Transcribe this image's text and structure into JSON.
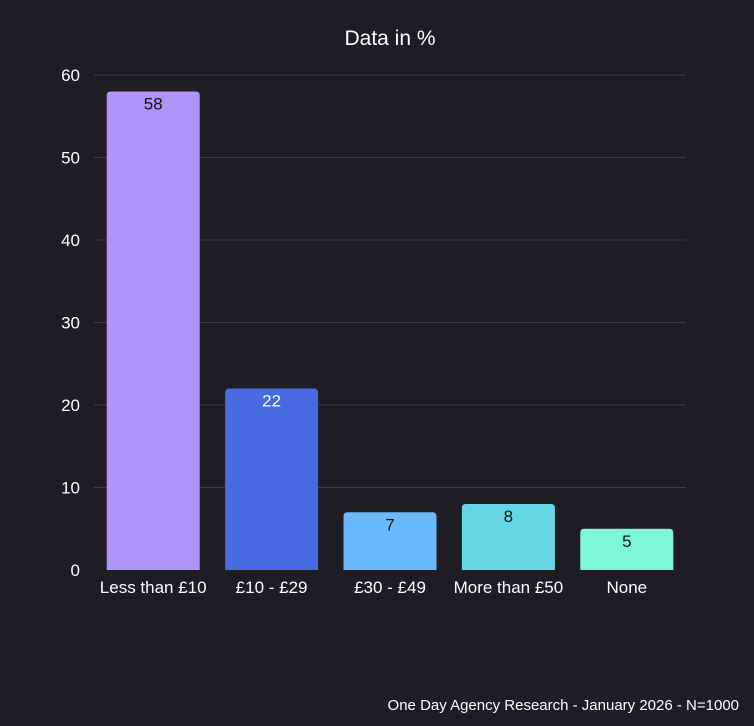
{
  "chart_data": {
    "type": "bar",
    "title": "Data in %",
    "categories": [
      "Less than £10",
      "£10 - £29",
      "£30 - £49",
      "More than £50",
      "None"
    ],
    "values": [
      58,
      22,
      7,
      8,
      5
    ],
    "ylim": [
      0,
      60
    ],
    "yticks": [
      0,
      10,
      20,
      30,
      40,
      50,
      60
    ],
    "grid": true,
    "bar_colors": [
      "#b093f8",
      "#4769e1",
      "#69b8fc",
      "#65d6e6",
      "#7cf8d6"
    ],
    "label_colors": [
      "#111111",
      "#ffffff",
      "#111111",
      "#111111",
      "#111111"
    ]
  },
  "footer": "One Day Agency Research - January 2026 - N=1000",
  "colors": {
    "background": "#1d1d23",
    "grid": "#3c3c44",
    "text": "#ffffff"
  }
}
